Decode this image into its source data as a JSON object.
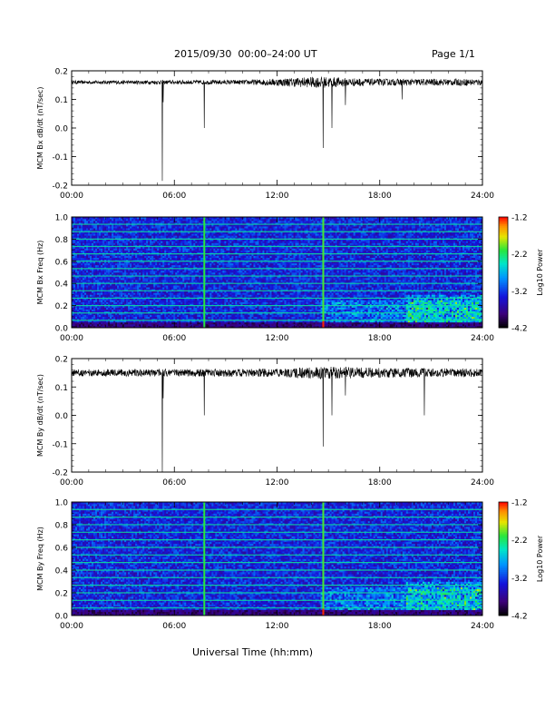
{
  "header": {
    "title": "2015/09/30  00:00–24:00 UT",
    "page": "Page 1/1"
  },
  "xlabel": "Universal Time (hh:mm)",
  "colors": {
    "trace": "#000000",
    "background": "#ffffff"
  },
  "chart_data": [
    {
      "type": "line",
      "ylabel": "MCM Bx dB/dt (nT/sec)",
      "xlim": [
        0,
        24
      ],
      "ylim": [
        -0.2,
        0.2
      ],
      "xticks": [
        "00:00",
        "06:00",
        "12:00",
        "18:00",
        "24:00"
      ],
      "yticks": [
        "-0.2",
        "-0.1",
        "0.0",
        "0.1",
        "0.2"
      ],
      "baseline": 0.16,
      "noise": [
        [
          0,
          0.006
        ],
        [
          10,
          0.008
        ],
        [
          14.5,
          0.02
        ],
        [
          17.5,
          0.012
        ],
        [
          24,
          0.012
        ]
      ],
      "spikes": [
        [
          5.3,
          -0.185
        ],
        [
          5.35,
          0.09
        ],
        [
          7.75,
          0.0
        ],
        [
          14.7,
          -0.07
        ],
        [
          15.2,
          0.0
        ],
        [
          16.0,
          0.08
        ],
        [
          19.3,
          0.1
        ]
      ]
    },
    {
      "type": "heatmap",
      "ylabel": "MCM Bx Freq (Hz)",
      "xlim": [
        0,
        24
      ],
      "ylim": [
        0.0,
        1.0
      ],
      "xticks": [
        "00:00",
        "06:00",
        "12:00",
        "18:00",
        "24:00"
      ],
      "yticks": [
        "0.0",
        "0.2",
        "0.4",
        "0.6",
        "0.8",
        "1.0"
      ],
      "colorbar": {
        "label": "Log10 Power",
        "ticks": [
          "-1.2",
          "-2.2",
          "-3.2",
          "-4.2"
        ],
        "range": [
          -4.2,
          -1.2
        ]
      },
      "harmonic_spacing_hz": 0.0667,
      "vertical_lines_hr": [
        7.75,
        14.7
      ]
    },
    {
      "type": "line",
      "ylabel": "MCM By dB/dt (nT/sec)",
      "xlim": [
        0,
        24
      ],
      "ylim": [
        -0.2,
        0.2
      ],
      "xticks": [
        "00:00",
        "06:00",
        "12:00",
        "18:00",
        "24:00"
      ],
      "yticks": [
        "-0.2",
        "-0.1",
        "0.0",
        "0.1",
        "0.2"
      ],
      "baseline": 0.15,
      "noise": [
        [
          0,
          0.012
        ],
        [
          12,
          0.014
        ],
        [
          14.5,
          0.022
        ],
        [
          18,
          0.018
        ],
        [
          24,
          0.014
        ]
      ],
      "spikes": [
        [
          5.3,
          -0.205
        ],
        [
          5.35,
          0.06
        ],
        [
          7.75,
          0.0
        ],
        [
          14.7,
          -0.11
        ],
        [
          15.2,
          0.0
        ],
        [
          16.0,
          0.07
        ],
        [
          20.6,
          0.0
        ]
      ]
    },
    {
      "type": "heatmap",
      "ylabel": "MCM By Freq (Hz)",
      "xlim": [
        0,
        24
      ],
      "ylim": [
        0.0,
        1.0
      ],
      "xticks": [
        "00:00",
        "06:00",
        "12:00",
        "18:00",
        "24:00"
      ],
      "yticks": [
        "0.0",
        "0.2",
        "0.4",
        "0.6",
        "0.8",
        "1.0"
      ],
      "colorbar": {
        "label": "Log10 Power",
        "ticks": [
          "-1.2",
          "-2.2",
          "-3.2",
          "-4.2"
        ],
        "range": [
          -4.2,
          -1.2
        ]
      },
      "harmonic_spacing_hz": 0.0667,
      "vertical_lines_hr": [
        7.75,
        14.7
      ]
    }
  ]
}
